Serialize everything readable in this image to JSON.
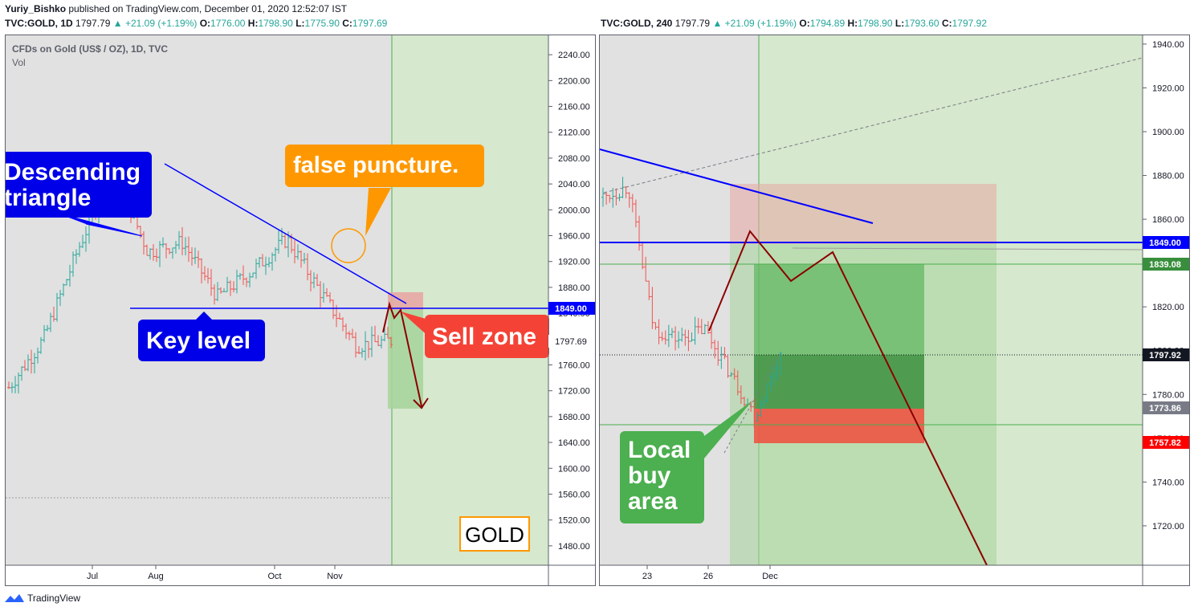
{
  "header": {
    "author": "Yuriy_Bishko",
    "published_text": "published on TradingView.com, December 01, 2020 12:52:07 IST"
  },
  "left": {
    "quote_symbol": "TVC:GOLD, 1D",
    "last": "1797.79",
    "change": "▲ +21.09 (+1.19%)",
    "o_label": "O:",
    "o": "1776.00",
    "h_label": "H:",
    "h": "1798.90",
    "l_label": "L:",
    "l": "1775.90",
    "c_label": "C:",
    "c": "1797.69",
    "title": "CFDs on Gold (US$ / OZ), 1D, TVC",
    "vol_label": "Vol",
    "callouts": {
      "triangle": "Descending triangle",
      "false_puncture": "false puncture.",
      "key_level": "Key level",
      "sell_zone": "Sell zone",
      "badge": "GOLD"
    },
    "price_tags": {
      "key": "1849.00",
      "last": "1797.69"
    },
    "y_ticks": [
      "2240.00",
      "2200.00",
      "2160.00",
      "2120.00",
      "2080.00",
      "2040.00",
      "2000.00",
      "1960.00",
      "1920.00",
      "1880.00",
      "1840.00",
      "1800.00",
      "1760.00",
      "1720.00",
      "1680.00",
      "1640.00",
      "1600.00",
      "1560.00",
      "1520.00",
      "1480.00"
    ],
    "x_ticks": [
      "Jul",
      "Aug",
      "Oct",
      "Nov"
    ]
  },
  "right": {
    "quote_symbol": "TVC:GOLD, 240",
    "last": "1797.79",
    "change": "▲ +21.09 (+1.19%)",
    "o_label": "O:",
    "o": "1794.89",
    "h_label": "H:",
    "h": "1798.90",
    "l_label": "L:",
    "l": "1793.60",
    "c_label": "C:",
    "c": "1797.92",
    "callouts": {
      "local_buy": "Local buy area"
    },
    "price_tags": {
      "key": "1849.00",
      "target": "1839.08",
      "last": "1797.92",
      "entry": "1773.86",
      "stop": "1757.82"
    },
    "y_ticks": [
      "1940.00",
      "1920.00",
      "1900.00",
      "1880.00",
      "1860.00",
      "1840.00",
      "1820.00",
      "1800.00",
      "1780.00",
      "1760.00",
      "1740.00",
      "1720.00"
    ],
    "x_ticks": [
      "23",
      "26",
      "Dec"
    ]
  },
  "footer": {
    "brand": "TradingView"
  },
  "colors": {
    "bull": "#26a69a",
    "bear": "#ef5350",
    "key_line": "#0000ff",
    "arrow": "#8b0000",
    "zone_green": "#d6e8cd"
  },
  "chart_data": [
    {
      "type": "candlestick",
      "title": "CFDs on Gold (US$ / OZ), 1D, TVC",
      "symbol": "TVC:GOLD",
      "interval": "1D",
      "ylim": [
        1450,
        2270
      ],
      "x_ticks": [
        "Jul",
        "Aug",
        "Oct",
        "Nov"
      ],
      "key_level": 1849.0,
      "last_close": 1797.69,
      "approx_close_path": [
        {
          "x": "Jun",
          "y": 1725
        },
        {
          "x": "Jul",
          "y": 1800
        },
        {
          "x": "late Jul",
          "y": 1940
        },
        {
          "x": "Aug",
          "y": 2065
        },
        {
          "x": "mid Aug",
          "y": 1935
        },
        {
          "x": "Sep",
          "y": 1950
        },
        {
          "x": "late Sep",
          "y": 1865
        },
        {
          "x": "Oct",
          "y": 1905
        },
        {
          "x": "early Nov",
          "y": 1955
        },
        {
          "x": "mid Nov",
          "y": 1870
        },
        {
          "x": "late Nov",
          "y": 1790
        },
        {
          "x": "Dec 01",
          "y": 1797.69
        }
      ],
      "annotations": [
        "Descending triangle",
        "false puncture.",
        "Key level",
        "Sell zone",
        "GOLD"
      ]
    },
    {
      "type": "candlestick",
      "symbol": "TVC:GOLD",
      "interval": "240",
      "ylim": [
        1702,
        1944
      ],
      "x_ticks": [
        "23",
        "26",
        "Dec"
      ],
      "levels": {
        "key": 1849.0,
        "target": 1839.08,
        "last": 1797.92,
        "entry": 1773.86,
        "stop": 1757.82
      },
      "approx_close_path": [
        {
          "x": "Nov 20",
          "y": 1870
        },
        {
          "x": "Nov 23",
          "y": 1875
        },
        {
          "x": "Nov 24",
          "y": 1810
        },
        {
          "x": "Nov 25",
          "y": 1805
        },
        {
          "x": "Nov 26",
          "y": 1810
        },
        {
          "x": "Nov 27",
          "y": 1790
        },
        {
          "x": "Nov 30",
          "y": 1770
        },
        {
          "x": "Dec 01",
          "y": 1797.92
        }
      ],
      "annotations": [
        "Local buy area"
      ]
    }
  ]
}
